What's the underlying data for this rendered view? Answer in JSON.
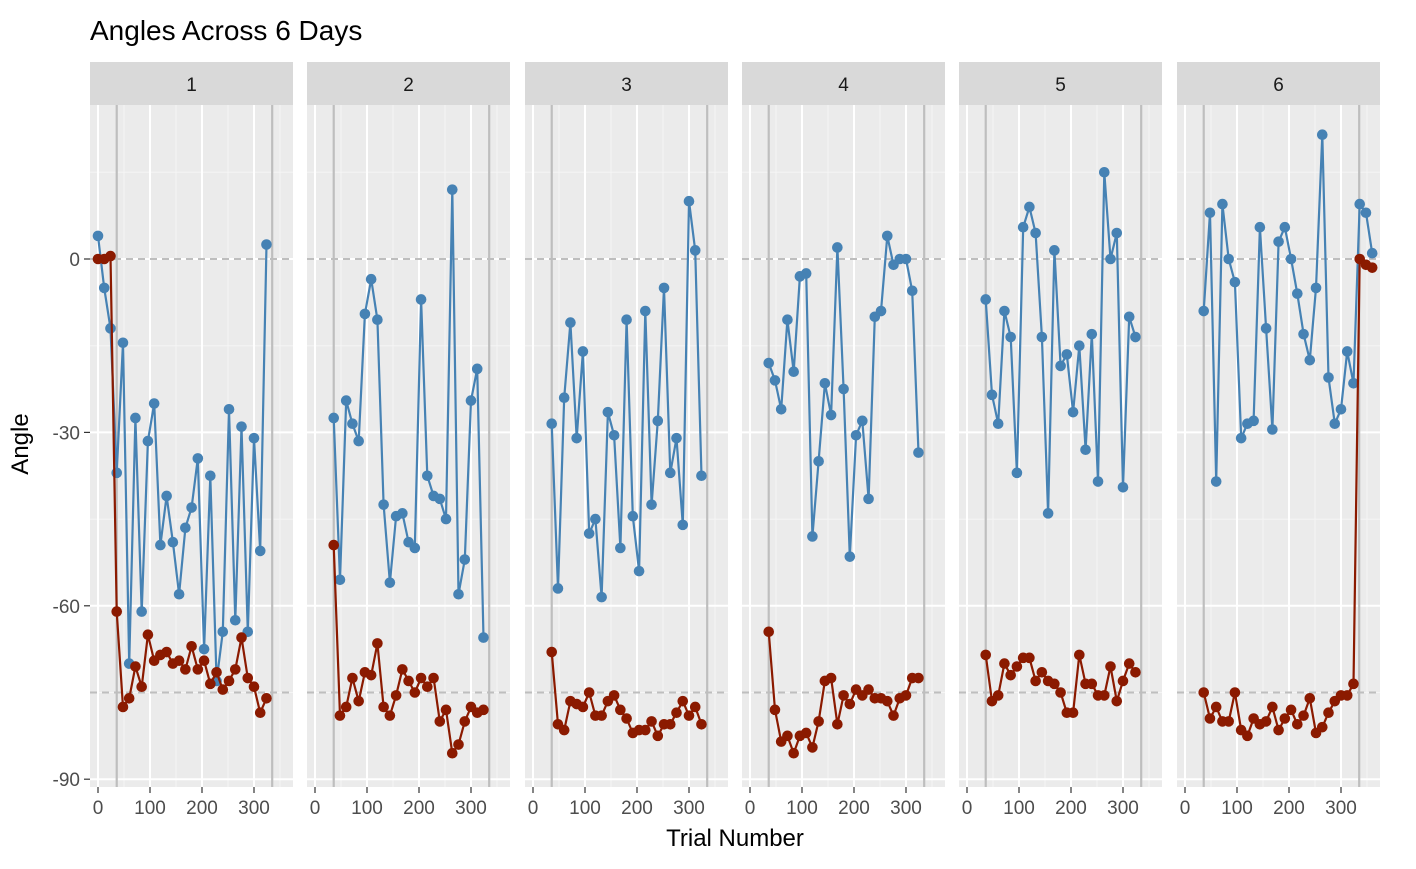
{
  "title": "Angles Across 6 Days",
  "xlabel": "Trial Number",
  "ylabel": "Angle",
  "colors": {
    "panel": "#ebebeb",
    "strip": "#d9d9d9",
    "blue": "#4682b4",
    "red": "#8b1a00",
    "vline": "#bebebe",
    "refline": "#bebebe"
  },
  "chart_data": {
    "type": "line",
    "facets": [
      "1",
      "2",
      "3",
      "4",
      "5",
      "6"
    ],
    "xlim": [
      -10,
      370
    ],
    "ylim": [
      -90,
      30
    ],
    "x_ticks": [
      0,
      100,
      200,
      300
    ],
    "x_tick_labels": [
      "0",
      "100",
      "200",
      "300"
    ],
    "y_ticks": [
      0,
      -30,
      -60,
      -90
    ],
    "y_tick_labels": [
      "0",
      "-30",
      "-60",
      "-90"
    ],
    "reference_lines": [
      0,
      -75
    ],
    "grid": true,
    "panels": [
      {
        "facet": "1",
        "vlines": [
          36,
          335
        ],
        "blue": {
          "x": [
            0,
            12,
            24,
            36,
            48,
            60,
            72,
            84,
            96,
            108,
            120,
            132,
            144,
            156,
            168,
            180,
            192,
            204,
            216,
            228,
            240,
            252,
            264,
            276,
            288,
            300,
            312,
            324
          ],
          "y": [
            4,
            -5,
            -12,
            -37,
            -14.5,
            -70,
            -27.5,
            -61,
            -31.5,
            -25,
            -49.5,
            -41,
            -49,
            -58,
            -46.5,
            -43,
            -34.5,
            -67.5,
            -37.5,
            -73,
            -64.5,
            -26,
            -62.5,
            -29,
            -64.5,
            -31,
            -50.5,
            2.5
          ]
        },
        "red": {
          "x": [
            0,
            12,
            24,
            36,
            48,
            60,
            72,
            84,
            96,
            108,
            120,
            132,
            144,
            156,
            168,
            180,
            192,
            204,
            216,
            228,
            240,
            252,
            264,
            276,
            288,
            300,
            312,
            324
          ],
          "y": [
            0,
            0,
            0.5,
            -61,
            -77.5,
            -76,
            -70.5,
            -74,
            -65,
            -69.5,
            -68.5,
            -68,
            -70,
            -69.5,
            -71,
            -67,
            -71,
            -69.5,
            -73.5,
            -71.5,
            -74.5,
            -73,
            -71,
            -65.5,
            -72.5,
            -74,
            -78.5,
            -76
          ]
        }
      },
      {
        "facet": "2",
        "vlines": [
          36,
          335
        ],
        "blue": {
          "x": [
            36,
            48,
            60,
            72,
            84,
            96,
            108,
            120,
            132,
            144,
            156,
            168,
            180,
            192,
            204,
            216,
            228,
            240,
            252,
            264,
            276,
            288,
            300,
            312,
            324
          ],
          "y": [
            -27.5,
            -55.5,
            -24.5,
            -28.5,
            -31.5,
            -9.5,
            -3.5,
            -10.5,
            -42.5,
            -56,
            -44.5,
            -44,
            -49,
            -50,
            -7,
            -37.5,
            -41,
            -41.5,
            -45,
            12,
            -58,
            -52,
            -24.5,
            -19,
            -65.5
          ]
        },
        "red": {
          "x": [
            36,
            48,
            60,
            72,
            84,
            96,
            108,
            120,
            132,
            144,
            156,
            168,
            180,
            192,
            204,
            216,
            228,
            240,
            252,
            264,
            276,
            288,
            300,
            312,
            324
          ],
          "y": [
            -49.5,
            -79,
            -77.5,
            -72.5,
            -76.5,
            -71.5,
            -72,
            -66.5,
            -77.5,
            -79,
            -75.5,
            -71,
            -73,
            -75,
            -72.5,
            -74,
            -72.5,
            -80,
            -78,
            -85.5,
            -84,
            -80,
            -77.5,
            -78.5,
            -78
          ]
        }
      },
      {
        "facet": "3",
        "vlines": [
          36,
          335
        ],
        "blue": {
          "x": [
            36,
            48,
            60,
            72,
            84,
            96,
            108,
            120,
            132,
            144,
            156,
            168,
            180,
            192,
            204,
            216,
            228,
            240,
            252,
            264,
            276,
            288,
            300,
            312,
            324
          ],
          "y": [
            -28.5,
            -57,
            -24,
            -11,
            -31,
            -16,
            -47.5,
            -45,
            -58.5,
            -26.5,
            -30.5,
            -50,
            -10.5,
            -44.5,
            -54,
            -9,
            -42.5,
            -28,
            -5,
            -37,
            -31,
            -46,
            10,
            1.5,
            -37.5
          ]
        },
        "red": {
          "x": [
            36,
            48,
            60,
            72,
            84,
            96,
            108,
            120,
            132,
            144,
            156,
            168,
            180,
            192,
            204,
            216,
            228,
            240,
            252,
            264,
            276,
            288,
            300,
            312,
            324
          ],
          "y": [
            -68,
            -80.5,
            -81.5,
            -76.5,
            -77,
            -77.5,
            -75,
            -79,
            -79,
            -76.5,
            -75.5,
            -78,
            -79.5,
            -82,
            -81.5,
            -81.5,
            -80,
            -82.5,
            -80.5,
            -80.5,
            -78.5,
            -76.5,
            -79,
            -77.5,
            -80.5
          ]
        }
      },
      {
        "facet": "4",
        "vlines": [
          36,
          335
        ],
        "blue": {
          "x": [
            36,
            48,
            60,
            72,
            84,
            96,
            108,
            120,
            132,
            144,
            156,
            168,
            180,
            192,
            204,
            216,
            228,
            240,
            252,
            264,
            276,
            288,
            300,
            312,
            324
          ],
          "y": [
            -18,
            -21,
            -26,
            -10.5,
            -19.5,
            -3,
            -2.5,
            -48,
            -35,
            -21.5,
            -27,
            2,
            -22.5,
            -51.5,
            -30.5,
            -28,
            -41.5,
            -10,
            -9,
            4,
            -1,
            0,
            0,
            -5.5,
            -33.5
          ]
        },
        "red": {
          "x": [
            36,
            48,
            60,
            72,
            84,
            96,
            108,
            120,
            132,
            144,
            156,
            168,
            180,
            192,
            204,
            216,
            228,
            240,
            252,
            264,
            276,
            288,
            300,
            312,
            324
          ],
          "y": [
            -64.5,
            -78,
            -83.5,
            -82.5,
            -85.5,
            -82.5,
            -82,
            -84.5,
            -80,
            -73,
            -72.5,
            -80.5,
            -75.5,
            -77,
            -74.5,
            -75.5,
            -74.5,
            -76,
            -76,
            -76.5,
            -79,
            -76,
            -75.5,
            -72.5,
            -72.5
          ]
        }
      },
      {
        "facet": "5",
        "vlines": [
          36,
          335
        ],
        "blue": {
          "x": [
            36,
            48,
            60,
            72,
            84,
            96,
            108,
            120,
            132,
            144,
            156,
            168,
            180,
            192,
            204,
            216,
            228,
            240,
            252,
            264,
            276,
            288,
            300,
            312,
            324
          ],
          "y": [
            -7,
            -23.5,
            -28.5,
            -9,
            -13.5,
            -37,
            5.5,
            9,
            4.5,
            -13.5,
            -44,
            1.5,
            -18.5,
            -16.5,
            -26.5,
            -15,
            -33,
            -13,
            -38.5,
            15,
            0,
            4.5,
            -39.5,
            -10,
            -13.5
          ]
        },
        "red": {
          "x": [
            36,
            48,
            60,
            72,
            84,
            96,
            108,
            120,
            132,
            144,
            156,
            168,
            180,
            192,
            204,
            216,
            228,
            240,
            252,
            264,
            276,
            288,
            300,
            312,
            324
          ],
          "y": [
            -68.5,
            -76.5,
            -75.5,
            -70,
            -72,
            -70.5,
            -69,
            -69,
            -73,
            -71.5,
            -73,
            -73.5,
            -75,
            -78.5,
            -78.5,
            -68.5,
            -73.5,
            -73.5,
            -75.5,
            -75.5,
            -70.5,
            -76.5,
            -73,
            -70,
            -71.5
          ]
        }
      },
      {
        "facet": "6",
        "vlines": [
          36,
          335
        ],
        "blue": {
          "x": [
            36,
            48,
            60,
            72,
            84,
            96,
            108,
            120,
            132,
            144,
            156,
            168,
            180,
            192,
            204,
            216,
            228,
            240,
            252,
            264,
            276,
            288,
            300,
            312,
            324,
            336,
            348,
            360
          ],
          "y": [
            -9,
            8,
            -38.5,
            9.5,
            0,
            -4,
            -31,
            -28.5,
            -28,
            5.5,
            -12,
            -29.5,
            3,
            5.5,
            0,
            -6,
            -13,
            -17.5,
            -5,
            21.5,
            -20.5,
            -28.5,
            -26,
            -16,
            -21.5,
            9.5,
            8,
            1
          ]
        },
        "red": {
          "x": [
            36,
            48,
            60,
            72,
            84,
            96,
            108,
            120,
            132,
            144,
            156,
            168,
            180,
            192,
            204,
            216,
            228,
            240,
            252,
            264,
            276,
            288,
            300,
            312,
            324,
            336,
            348,
            360
          ],
          "y": [
            -75,
            -79.5,
            -77.5,
            -80,
            -80,
            -75,
            -81.5,
            -82.5,
            -79.5,
            -80.5,
            -80,
            -77.5,
            -81.5,
            -79.5,
            -78,
            -80.5,
            -79,
            -76,
            -82,
            -81,
            -78.5,
            -76.5,
            -75.5,
            -75.5,
            -73.5,
            0,
            -1,
            -1.5
          ]
        }
      }
    ]
  }
}
